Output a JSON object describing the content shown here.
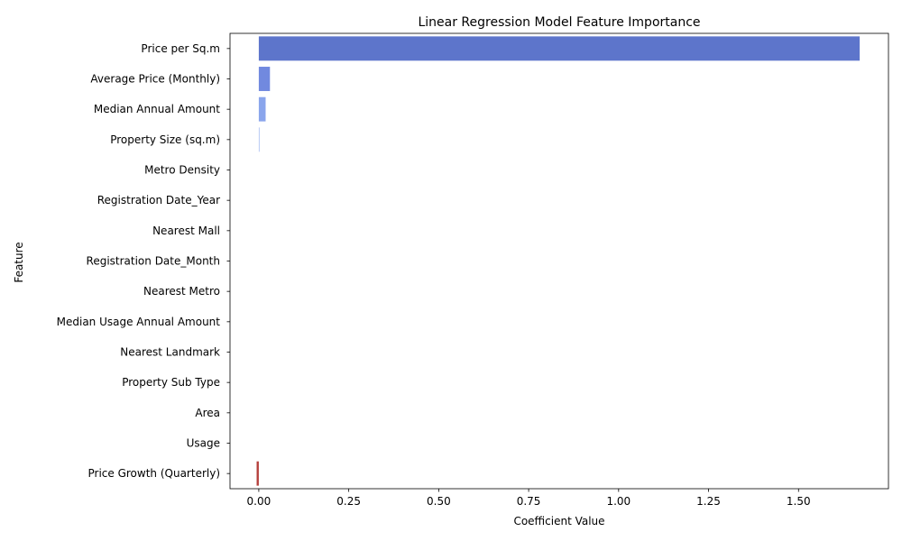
{
  "chart_data": {
    "type": "bar",
    "orientation": "horizontal",
    "title": "Linear Regression Model Feature Importance",
    "xlabel": "Coefficient Value",
    "ylabel": "Feature",
    "xlim": [
      -0.08,
      1.75
    ],
    "xticks": [
      0.0,
      0.25,
      0.5,
      0.75,
      1.0,
      1.25,
      1.5
    ],
    "xtick_labels": [
      "0.00",
      "0.25",
      "0.50",
      "0.75",
      "1.00",
      "1.25",
      "1.50"
    ],
    "grid": false,
    "categories": [
      "Price per Sq.m",
      "Average Price (Monthly)",
      "Median Annual Amount",
      "Property Size (sq.m)",
      "Metro Density",
      "Registration Date_Year",
      "Nearest Mall",
      "Registration Date_Month",
      "Nearest Metro",
      "Median Usage Annual Amount",
      "Nearest Landmark",
      "Property Sub Type",
      "Area",
      "Usage",
      "Price Growth (Quarterly)"
    ],
    "values": [
      1.67,
      0.031,
      0.019,
      0.002,
      0.0,
      0.0,
      0.0,
      0.0,
      0.0,
      0.0,
      0.0,
      0.0,
      0.0,
      0.0,
      -0.006
    ],
    "colors": [
      "#5d75cb",
      "#7189df",
      "#8aa5ec",
      "#a7bcf2",
      "#c1cef0",
      "#d3d9eb",
      "#dddde0",
      "#e6d8d0",
      "#eecab7",
      "#f0b89e",
      "#eda183",
      "#e4866a",
      "#d66a53",
      "#c44d3f",
      "#b5403c"
    ]
  }
}
